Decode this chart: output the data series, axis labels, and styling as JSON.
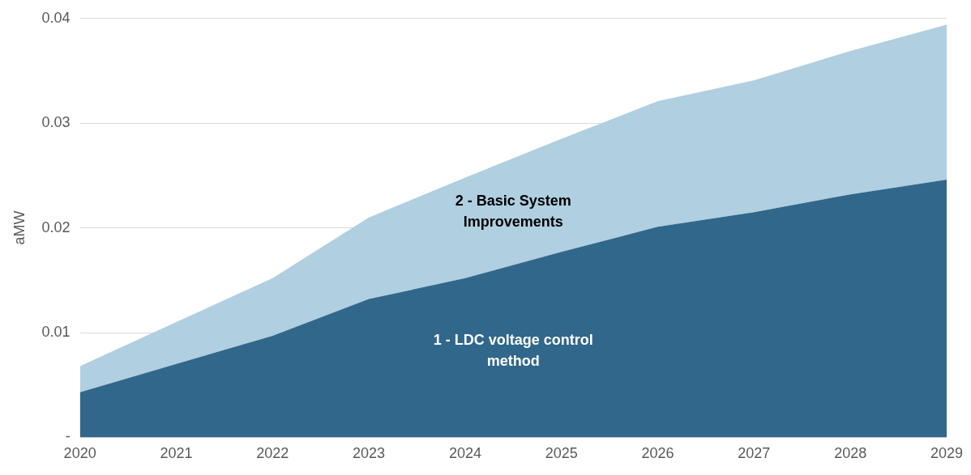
{
  "chart_data": {
    "type": "area",
    "stacked": true,
    "ylabel": "aMW",
    "categories": [
      "2020",
      "2021",
      "2022",
      "2023",
      "2024",
      "2025",
      "2026",
      "2027",
      "2028",
      "2029"
    ],
    "series": [
      {
        "name": "1 - LDC voltage control method",
        "color": "#31678a",
        "values": [
          0.0043,
          0.007,
          0.0097,
          0.0132,
          0.0152,
          0.0177,
          0.0201,
          0.0215,
          0.0232,
          0.0246
        ]
      },
      {
        "name": "2 - Basic System Improvements",
        "color": "#b0cfe0",
        "values": [
          0.0025,
          0.004,
          0.0055,
          0.0078,
          0.0096,
          0.0108,
          0.012,
          0.0126,
          0.0137,
          0.0148
        ]
      }
    ],
    "ylim": [
      0,
      0.04
    ],
    "yticks": [
      {
        "value": 0,
        "label": "-"
      },
      0.01,
      0.02,
      0.03,
      0.04
    ],
    "grid": "y",
    "legend": false
  }
}
